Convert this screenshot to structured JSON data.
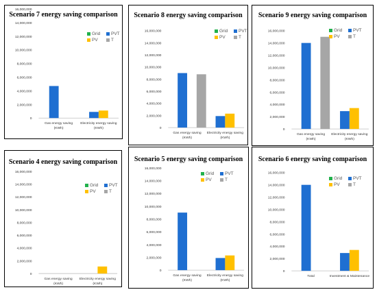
{
  "colors": {
    "Grid": "#22b14c",
    "PVT": "#1f6fd1",
    "PV": "#ffc000",
    "T": "#a6a6a6"
  },
  "legend_items": [
    "Grid",
    "PVT",
    "PV",
    "T"
  ],
  "chart_data": [
    {
      "type": "bar",
      "title": "Scenario 7 energy saving comparison",
      "categories": [
        "Gas energy saving (KWh)",
        "Electricity energy saving (KWh)"
      ],
      "series": [
        {
          "name": "Grid",
          "values": [
            0,
            0
          ]
        },
        {
          "name": "PVT",
          "values": [
            4700000,
            900000
          ]
        },
        {
          "name": "PV",
          "values": [
            0,
            1100000
          ]
        },
        {
          "name": "T",
          "values": [
            0,
            0
          ]
        }
      ],
      "ylim": [
        0,
        16000000
      ],
      "yticks": [
        "0",
        "2,000,000",
        "4,000,000",
        "6,000,000",
        "8,000,000",
        "10,000,000",
        "12,000,000",
        "14,000,000",
        "16,000,000"
      ],
      "legend": "top-right",
      "grid": false
    },
    {
      "type": "bar",
      "title": "Scenario 8 energy saving comparison",
      "categories": [
        "Gas energy saving (KWh)",
        "Electricity energy saving (KWh)"
      ],
      "series": [
        {
          "name": "Grid",
          "values": [
            0,
            0
          ]
        },
        {
          "name": "PVT",
          "values": [
            9000000,
            1900000
          ]
        },
        {
          "name": "PV",
          "values": [
            0,
            2300000
          ]
        },
        {
          "name": "T",
          "values": [
            8800000,
            0
          ]
        }
      ],
      "ylim": [
        0,
        16000000
      ],
      "yticks": [
        "0",
        "2,000,000",
        "4,000,000",
        "6,000,000",
        "8,000,000",
        "10,000,000",
        "12,000,000",
        "14,000,000",
        "16,000,000"
      ],
      "legend": "top-right",
      "grid": false
    },
    {
      "type": "bar",
      "title": "Scenario 9 energy saving comparison",
      "categories": [
        "Gas energy saving (KWh)",
        "Electricity energy saving (KWh)"
      ],
      "series": [
        {
          "name": "Grid",
          "values": [
            0,
            0
          ]
        },
        {
          "name": "PVT",
          "values": [
            14000000,
            2900000
          ]
        },
        {
          "name": "PV",
          "values": [
            0,
            3400000
          ]
        },
        {
          "name": "T",
          "values": [
            15000000,
            0
          ]
        }
      ],
      "ylim": [
        0,
        16000000
      ],
      "yticks": [
        "0",
        "2,000,000",
        "4,000,000",
        "6,000,000",
        "8,000,000",
        "10,000,000",
        "12,000,000",
        "14,000,000",
        "16,000,000"
      ],
      "legend": "top-right",
      "grid": false
    },
    {
      "type": "bar",
      "title": "Scenario 4 energy saving comparison",
      "categories": [
        "Gas energy saving (KWh)",
        "Electricity energy saving (KWh)"
      ],
      "series": [
        {
          "name": "Grid",
          "values": [
            0,
            0
          ]
        },
        {
          "name": "PVT",
          "values": [
            0,
            0
          ]
        },
        {
          "name": "PV",
          "values": [
            0,
            1100000
          ]
        },
        {
          "name": "T",
          "values": [
            0,
            0
          ]
        }
      ],
      "ylim": [
        0,
        16000000
      ],
      "yticks": [
        "0",
        "2,000,000",
        "4,000,000",
        "6,000,000",
        "8,000,000",
        "10,000,000",
        "12,000,000",
        "14,000,000",
        "16,000,000"
      ],
      "legend": "top-right",
      "grid": false
    },
    {
      "type": "bar",
      "title": "Scenario 5 energy saving comparison",
      "categories": [
        "Gas energy saving (KWh)",
        "Electricity energy saving (KWh)"
      ],
      "series": [
        {
          "name": "Grid",
          "values": [
            0,
            0
          ]
        },
        {
          "name": "PVT",
          "values": [
            9000000,
            1900000
          ]
        },
        {
          "name": "PV",
          "values": [
            0,
            2300000
          ]
        },
        {
          "name": "T",
          "values": [
            0,
            0
          ]
        }
      ],
      "ylim": [
        0,
        16000000
      ],
      "yticks": [
        "0",
        "2,000,000",
        "4,000,000",
        "6,000,000",
        "8,000,000",
        "10,000,000",
        "12,000,000",
        "14,000,000",
        "16,000,000"
      ],
      "legend": "top-right",
      "grid": false
    },
    {
      "type": "bar",
      "title": "Scenario 6 energy saving comparison",
      "categories": [
        "Total",
        "Investment & Maintenance"
      ],
      "series": [
        {
          "name": "Grid",
          "values": [
            0,
            0
          ]
        },
        {
          "name": "PVT",
          "values": [
            14000000,
            2900000
          ]
        },
        {
          "name": "PV",
          "values": [
            0,
            3400000
          ]
        },
        {
          "name": "T",
          "values": [
            0,
            0
          ]
        }
      ],
      "ylim": [
        0,
        16000000
      ],
      "yticks": [
        "0",
        "2,000,000",
        "4,000,000",
        "6,000,000",
        "8,000,000",
        "10,000,000",
        "12,000,000",
        "14,000,000",
        "16,000,000"
      ],
      "legend": "top-right",
      "grid": false
    }
  ]
}
